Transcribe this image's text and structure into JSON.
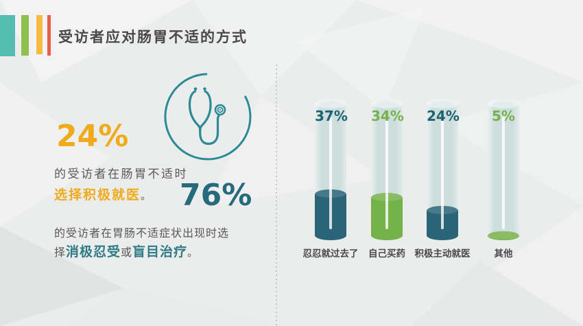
{
  "slide": {
    "title": "受访者应对肠胃不适的方式",
    "accent_bar_colors": [
      "#53bdb1",
      "#8ec04f",
      "#f6bb42",
      "#e8604c"
    ],
    "colors": {
      "title_text": "#4b4948",
      "body_text": "#595757",
      "yellow_accent": "#f0ab1d",
      "dark_teal_accent": "#256b7b",
      "teal_bold_text": "#2e7b85",
      "icon_teal": "#2a8a95"
    },
    "left_panel": {
      "icon": "stethoscope-icon",
      "stat_primary": {
        "value": "24%",
        "line1": "的受访者在肠胃不适时",
        "highlight": "选择积极就医",
        "period": "。"
      },
      "stat_secondary": {
        "value": "76%",
        "line1": "的受访者在胃肠不适症状出现时选",
        "line2_prefix": "择",
        "bold1": "消极忍受",
        "connector": "或",
        "bold2": "盲目治疗",
        "period": "。"
      }
    },
    "chart_data": {
      "type": "bar",
      "title": "",
      "xlabel": "",
      "ylabel": "",
      "ylim": [
        0,
        100
      ],
      "grid": false,
      "legend": false,
      "categories": [
        "忍忍就过去了",
        "自己买药",
        "积极主动就医",
        "其他"
      ],
      "values": [
        37,
        34,
        24,
        5
      ],
      "value_labels": [
        "37%",
        "34%",
        "24%",
        "5%"
      ],
      "bar_colors": [
        "#2a6477",
        "#76b24a",
        "#2a6477",
        "#76b24a"
      ],
      "value_label_colors": [
        "#1d6173",
        "#76b24a",
        "#1d6173",
        "#76b24a"
      ],
      "tube_color": "#cddedc",
      "category_label_color": "#4b4948"
    }
  }
}
